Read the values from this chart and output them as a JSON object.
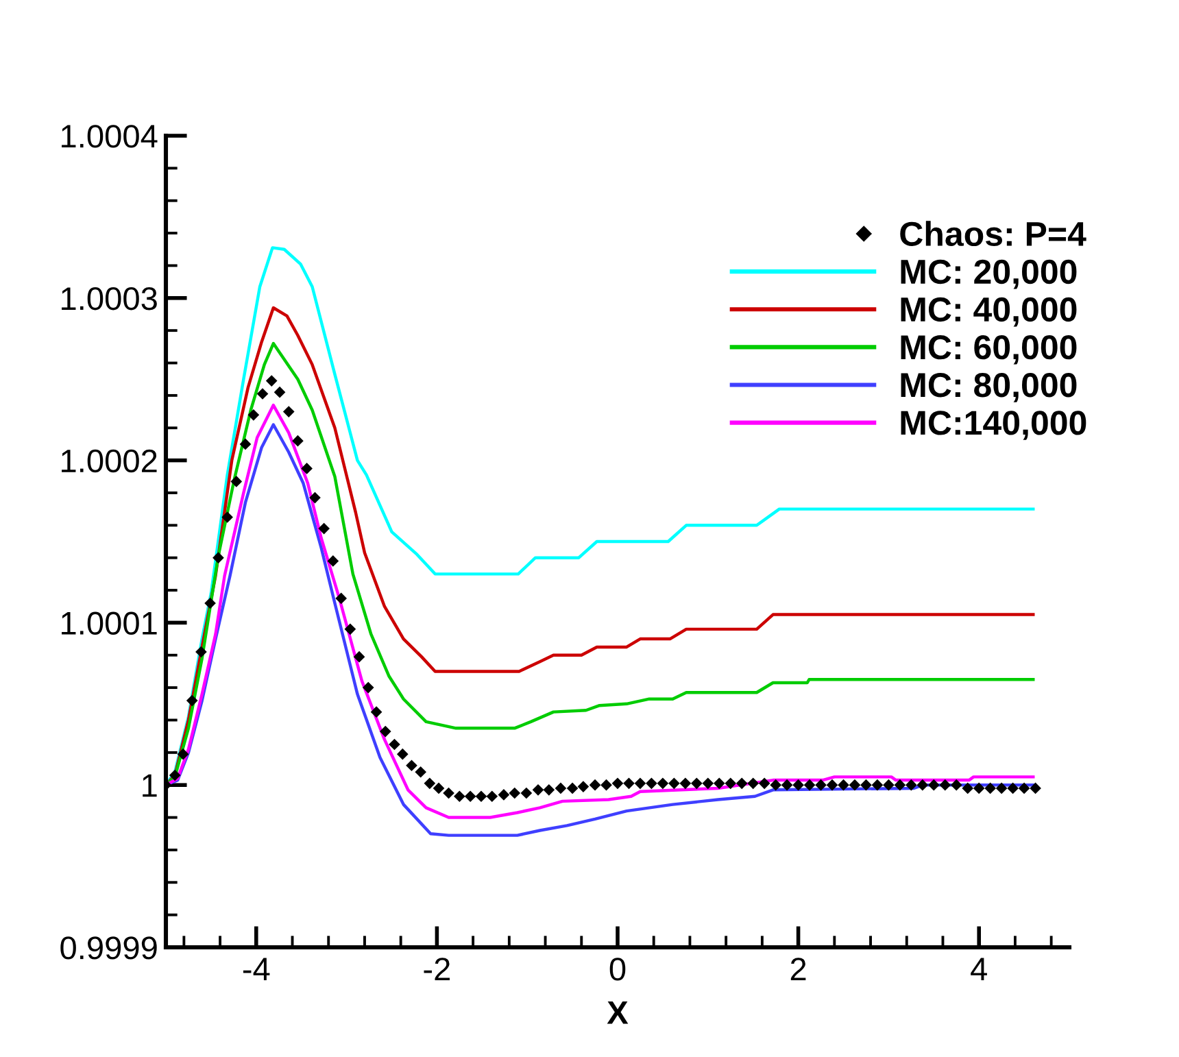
{
  "chart_data": {
    "type": "line",
    "xlabel": "X",
    "xlim": [
      -5,
      5
    ],
    "ylim": [
      0.9999,
      1.0004
    ],
    "xticks": [
      {
        "value": -4.8,
        "label": null
      },
      {
        "value": -4.4,
        "label": null
      },
      -4,
      {
        "value": -3.6,
        "label": null
      },
      {
        "value": -3.2,
        "label": null
      },
      {
        "value": -2.8,
        "label": null
      },
      {
        "value": -2.4,
        "label": null
      },
      -2,
      {
        "value": -1.6,
        "label": null
      },
      {
        "value": -1.2,
        "label": null
      },
      {
        "value": -0.8,
        "label": null
      },
      {
        "value": -0.4,
        "label": null
      },
      0,
      {
        "value": 0.4,
        "label": null
      },
      {
        "value": 0.8,
        "label": null
      },
      {
        "value": 1.2,
        "label": null
      },
      {
        "value": 1.6,
        "label": null
      },
      2,
      {
        "value": 2.4,
        "label": null
      },
      {
        "value": 2.8,
        "label": null
      },
      {
        "value": 3.2,
        "label": null
      },
      {
        "value": 3.6,
        "label": null
      },
      4,
      {
        "value": 4.4,
        "label": null
      },
      {
        "value": 4.8,
        "label": null
      }
    ],
    "yticks": [
      0.9999,
      {
        "value": 0.99992,
        "label": null
      },
      {
        "value": 0.99994,
        "label": null
      },
      {
        "value": 0.99996,
        "label": null
      },
      {
        "value": 0.99998,
        "label": null
      },
      1,
      {
        "value": 1.00002,
        "label": null
      },
      {
        "value": 1.00004,
        "label": null
      },
      {
        "value": 1.00006,
        "label": null
      },
      {
        "value": 1.00008,
        "label": null
      },
      1.0001,
      {
        "value": 1.00012,
        "label": null
      },
      {
        "value": 1.00014,
        "label": null
      },
      {
        "value": 1.00016,
        "label": null
      },
      {
        "value": 1.00018,
        "label": null
      },
      1.0002,
      {
        "value": 1.00022,
        "label": null
      },
      {
        "value": 1.00024,
        "label": null
      },
      {
        "value": 1.00026,
        "label": null
      },
      {
        "value": 1.00028,
        "label": null
      },
      1.0003,
      {
        "value": 1.00032,
        "label": null
      },
      {
        "value": 1.00034,
        "label": null
      },
      {
        "value": 1.00036,
        "label": null
      },
      {
        "value": 1.00038,
        "label": null
      },
      1.0004
    ],
    "legend": "top right",
    "series": [
      {
        "name": "Chaos: P=4",
        "type": "scatter",
        "marker": "diamond",
        "color": "#000000",
        "x": [
          -5.0,
          -4.9,
          -4.81,
          -4.71,
          -4.61,
          -4.51,
          -4.42,
          -4.32,
          -4.22,
          -4.12,
          -4.03,
          -3.93,
          -3.83,
          -3.74,
          -3.64,
          -3.54,
          -3.44,
          -3.35,
          -3.25,
          -3.15,
          -3.06,
          -2.96,
          -2.86,
          -2.76,
          -2.67,
          -2.57,
          -2.47,
          -2.38,
          -2.28,
          -2.18,
          -2.08,
          -1.98,
          -1.87,
          -1.75,
          -1.63,
          -1.51,
          -1.39,
          -1.26,
          -1.14,
          -1.01,
          -0.88,
          -0.76,
          -0.63,
          -0.5,
          -0.38,
          -0.25,
          -0.125,
          0.0,
          0.125,
          0.25,
          0.375,
          0.5,
          0.625,
          0.75,
          0.875,
          1.0,
          1.125,
          1.25,
          1.375,
          1.5,
          1.625,
          1.75,
          1.875,
          2.0,
          2.125,
          2.25,
          2.375,
          2.5,
          2.625,
          2.75,
          2.875,
          3.0,
          3.125,
          3.25,
          3.375,
          3.5,
          3.625,
          3.75,
          3.875,
          4.0,
          4.125,
          4.25,
          4.375,
          4.5,
          4.625
        ],
        "values": [
          1.0,
          1.000006,
          1.000019,
          1.000052,
          1.000082,
          1.000112,
          1.00014,
          1.000165,
          1.000187,
          1.00021,
          1.000228,
          1.000241,
          1.000249,
          1.000242,
          1.00023,
          1.000212,
          1.000195,
          1.000177,
          1.000158,
          1.000138,
          1.000115,
          1.000096,
          1.000079,
          1.00006,
          1.000045,
          1.000033,
          1.000025,
          1.000019,
          1.000012,
          1.000008,
          1.000001,
          0.999998,
          0.999995,
          0.999993,
          0.999993,
          0.999993,
          0.999993,
          0.999994,
          0.999995,
          0.999995,
          0.999997,
          0.999997,
          0.999998,
          0.999998,
          0.999999,
          1.0,
          1.0,
          1.000001,
          1.000001,
          1.000001,
          1.000001,
          1.000001,
          1.000001,
          1.000001,
          1.000001,
          1.000001,
          1.000001,
          1.000001,
          1.000001,
          1.000001,
          1.000001,
          1.0,
          1.0,
          1.0,
          1.0,
          1.0,
          1.0,
          1.0,
          1.0,
          1.0,
          1.0,
          1.0,
          1.0,
          1.0,
          1.0,
          1.0,
          1.0,
          1.0,
          0.999998,
          0.999998,
          0.999998,
          0.999998,
          0.999998,
          0.999998,
          0.999998
        ]
      },
      {
        "name": "MC: 20,000",
        "color": "#00ffff",
        "x": [
          -5.0,
          -4.9,
          -4.75,
          -4.6,
          -4.5,
          -4.32,
          -4.14,
          -3.96,
          -3.82,
          -3.69,
          -3.51,
          -3.38,
          -3.13,
          -2.88,
          -2.78,
          -2.5,
          -2.22,
          -2.02,
          -1.1,
          -0.91,
          -0.43,
          -0.23,
          0.56,
          0.76,
          1.54,
          1.79,
          4.6
        ],
        "values": [
          1.0,
          1.000008,
          1.000042,
          1.00009,
          1.000118,
          1.000191,
          1.00025,
          1.000307,
          1.000331,
          1.00033,
          1.000321,
          1.000307,
          1.000253,
          1.0002,
          1.000191,
          1.000156,
          1.000142,
          1.00013,
          1.00013,
          1.00014,
          1.00014,
          1.00015,
          1.00015,
          1.00016,
          1.00016,
          1.00017,
          1.00017
        ]
      },
      {
        "name": "MC: 40,000",
        "color": "#cc0000",
        "x": [
          -5.0,
          -4.9,
          -4.75,
          -4.6,
          -4.45,
          -4.27,
          -4.09,
          -3.94,
          -3.81,
          -3.66,
          -3.54,
          -3.38,
          -3.13,
          -2.9,
          -2.8,
          -2.58,
          -2.37,
          -2.17,
          -2.02,
          -1.09,
          -0.86,
          -0.71,
          -0.4,
          -0.23,
          0.1,
          0.25,
          0.58,
          0.76,
          1.54,
          1.72,
          4.6
        ],
        "values": [
          1.0,
          1.000006,
          1.00004,
          1.000085,
          1.000129,
          1.0002,
          1.000245,
          1.000273,
          1.000294,
          1.000289,
          1.000277,
          1.000259,
          1.00022,
          1.000168,
          1.000143,
          1.00011,
          1.00009,
          1.000079,
          1.00007,
          1.00007,
          1.000076,
          1.00008,
          1.00008,
          1.000085,
          1.000085,
          1.00009,
          1.00009,
          1.000096,
          1.000096,
          1.000105,
          1.000105
        ]
      },
      {
        "name": "MC: 60,000",
        "color": "#00cc00",
        "x": [
          -5.0,
          -4.9,
          -4.75,
          -4.6,
          -4.42,
          -4.24,
          -4.06,
          -3.91,
          -3.81,
          -3.54,
          -3.38,
          -3.13,
          -2.93,
          -2.73,
          -2.53,
          -2.37,
          -2.12,
          -1.79,
          -1.14,
          -0.96,
          -0.71,
          -0.35,
          -0.2,
          0.1,
          0.35,
          0.61,
          0.76,
          1.54,
          1.72,
          2.1,
          2.12,
          4.6
        ],
        "values": [
          1.0,
          1.000005,
          1.000035,
          1.000078,
          1.000141,
          1.000189,
          1.000231,
          1.000259,
          1.000272,
          1.00025,
          1.000231,
          1.00019,
          1.00013,
          1.000093,
          1.000067,
          1.000053,
          1.000039,
          1.000035,
          1.000035,
          1.000039,
          1.000045,
          1.000046,
          1.000049,
          1.00005,
          1.000053,
          1.000053,
          1.000057,
          1.000057,
          1.000063,
          1.000063,
          1.000065,
          1.000065
        ]
      },
      {
        "name": "MC: 80,000",
        "color": "#3f3fff",
        "x": [
          -5.0,
          -4.87,
          -4.75,
          -4.6,
          -4.45,
          -4.29,
          -4.12,
          -3.94,
          -3.81,
          -3.64,
          -3.48,
          -3.28,
          -3.13,
          -2.88,
          -2.63,
          -2.37,
          -2.07,
          -1.87,
          -1.11,
          -0.86,
          -0.56,
          -0.25,
          0.1,
          0.61,
          1.11,
          1.52,
          1.72,
          3.28,
          3.38,
          4.6
        ],
        "values": [
          1.0,
          1.000003,
          1.00002,
          1.000052,
          1.00009,
          1.000129,
          1.000174,
          1.000208,
          1.000222,
          1.000205,
          1.000186,
          1.000146,
          1.000112,
          1.000056,
          1.000017,
          0.999988,
          0.99997,
          0.999969,
          0.999969,
          0.999972,
          0.999975,
          0.999979,
          0.999984,
          0.999988,
          0.999991,
          0.999993,
          0.999997,
          0.999998,
          1.0,
          1.0
        ]
      },
      {
        "name": "MC:140,000",
        "color": "#ff00ff",
        "x": [
          -5.0,
          -4.87,
          -4.75,
          -4.6,
          -4.45,
          -4.35,
          -4.14,
          -3.99,
          -3.81,
          -3.64,
          -3.43,
          -3.28,
          -3.08,
          -2.83,
          -2.58,
          -2.32,
          -2.12,
          -1.87,
          -1.41,
          -1.11,
          -0.86,
          -0.61,
          -0.1,
          0.15,
          0.25,
          1.11,
          1.72,
          2.27,
          2.4,
          3.03,
          3.08,
          3.89,
          3.94,
          4.6
        ],
        "values": [
          1.0,
          1.000004,
          1.000022,
          1.000056,
          1.000093,
          1.000129,
          1.00018,
          1.000214,
          1.000234,
          1.000217,
          1.000186,
          1.000152,
          1.000115,
          1.000064,
          1.000028,
          0.999997,
          0.999986,
          0.99998,
          0.99998,
          0.999983,
          0.999986,
          0.99999,
          0.999991,
          0.999993,
          0.999996,
          0.999998,
          1.000003,
          1.000003,
          1.000005,
          1.000005,
          1.000003,
          1.000003,
          1.000005,
          1.000005
        ]
      }
    ]
  }
}
